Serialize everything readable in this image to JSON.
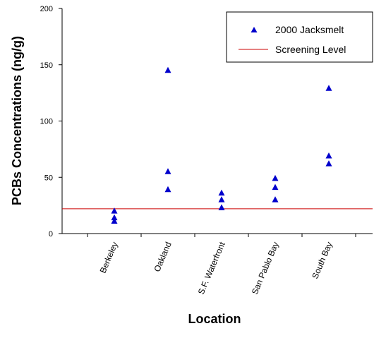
{
  "chart_data": {
    "type": "scatter",
    "title": "",
    "xlabel": "Location",
    "ylabel": "PCBs Concentrations (ng/g)",
    "ylim": [
      0,
      200
    ],
    "yticks": [
      0,
      50,
      100,
      150,
      200
    ],
    "categories": [
      "Berkeley",
      "Oakland",
      "S.F. Waterfront",
      "San Pablo Bay",
      "South Bay"
    ],
    "series": [
      {
        "name": "2000 Jacksmelt",
        "marker": "triangle",
        "color": "#0000cc",
        "points": [
          {
            "category": "Berkeley",
            "y": 20
          },
          {
            "category": "Berkeley",
            "y": 14
          },
          {
            "category": "Berkeley",
            "y": 11
          },
          {
            "category": "Oakland",
            "y": 145
          },
          {
            "category": "Oakland",
            "y": 55
          },
          {
            "category": "Oakland",
            "y": 39
          },
          {
            "category": "S.F. Waterfront",
            "y": 36
          },
          {
            "category": "S.F. Waterfront",
            "y": 30
          },
          {
            "category": "S.F. Waterfront",
            "y": 23
          },
          {
            "category": "San Pablo Bay",
            "y": 49
          },
          {
            "category": "San Pablo Bay",
            "y": 41
          },
          {
            "category": "San Pablo Bay",
            "y": 30
          },
          {
            "category": "South Bay",
            "y": 129
          },
          {
            "category": "South Bay",
            "y": 69
          },
          {
            "category": "South Bay",
            "y": 62
          }
        ]
      }
    ],
    "reference_line": {
      "name": "Screening Level",
      "y": 22,
      "color": "#cc0000"
    },
    "legend": {
      "placement": "top-right",
      "entries": [
        "2000 Jacksmelt",
        "Screening Level"
      ]
    },
    "grid": false
  }
}
